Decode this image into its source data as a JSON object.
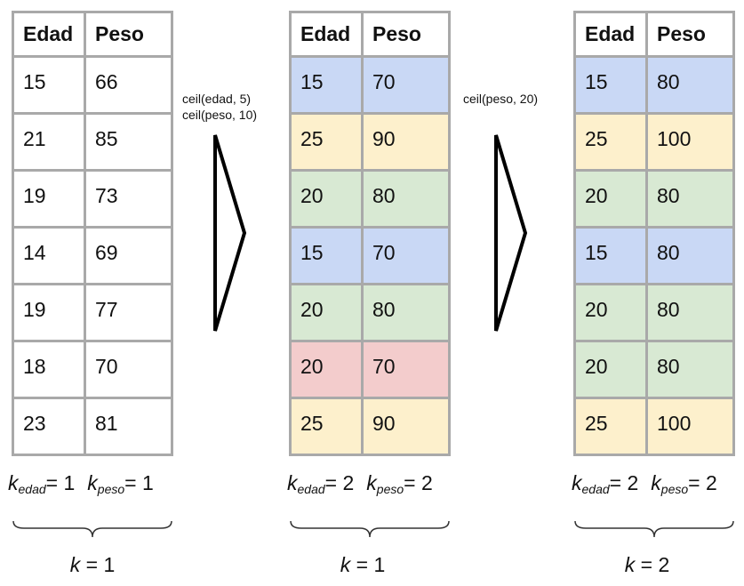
{
  "tables": [
    {
      "headers": [
        "Edad",
        "Peso"
      ],
      "rows": [
        {
          "edad": "15",
          "peso": "66",
          "color": "none"
        },
        {
          "edad": "21",
          "peso": "85",
          "color": "none"
        },
        {
          "edad": "19",
          "peso": "73",
          "color": "none"
        },
        {
          "edad": "14",
          "peso": "69",
          "color": "none"
        },
        {
          "edad": "19",
          "peso": "77",
          "color": "none"
        },
        {
          "edad": "18",
          "peso": "70",
          "color": "none"
        },
        {
          "edad": "23",
          "peso": "81",
          "color": "none"
        }
      ],
      "k_edad": "1",
      "k_peso": "1",
      "k": "1"
    },
    {
      "headers": [
        "Edad",
        "Peso"
      ],
      "rows": [
        {
          "edad": "15",
          "peso": "70",
          "color": "blue"
        },
        {
          "edad": "25",
          "peso": "90",
          "color": "yellow"
        },
        {
          "edad": "20",
          "peso": "80",
          "color": "green"
        },
        {
          "edad": "15",
          "peso": "70",
          "color": "blue"
        },
        {
          "edad": "20",
          "peso": "80",
          "color": "green"
        },
        {
          "edad": "20",
          "peso": "70",
          "color": "red"
        },
        {
          "edad": "25",
          "peso": "90",
          "color": "yellow"
        }
      ],
      "k_edad": "2",
      "k_peso": "2",
      "k": "1"
    },
    {
      "headers": [
        "Edad",
        "Peso"
      ],
      "rows": [
        {
          "edad": "15",
          "peso": "80",
          "color": "blue"
        },
        {
          "edad": "25",
          "peso": "100",
          "color": "yellow"
        },
        {
          "edad": "20",
          "peso": "80",
          "color": "green"
        },
        {
          "edad": "15",
          "peso": "80",
          "color": "blue"
        },
        {
          "edad": "20",
          "peso": "80",
          "color": "green"
        },
        {
          "edad": "20",
          "peso": "80",
          "color": "green"
        },
        {
          "edad": "25",
          "peso": "100",
          "color": "yellow"
        }
      ],
      "k_edad": "2",
      "k_peso": "2",
      "k": "2"
    }
  ],
  "transforms": [
    {
      "lines": [
        "ceil(edad, 5)",
        "ceil(peso, 10)"
      ]
    },
    {
      "lines": [
        "ceil(peso, 20)"
      ]
    }
  ],
  "labels": {
    "k_symbol": "k",
    "sub_edad": "edad",
    "sub_peso": "peso",
    "equals": "= "
  },
  "colors": {
    "blue": "#c9d8f5",
    "yellow": "#fdf0cc",
    "green": "#d8e9d3",
    "red": "#f3cccc",
    "border": "#a9a9a9"
  }
}
